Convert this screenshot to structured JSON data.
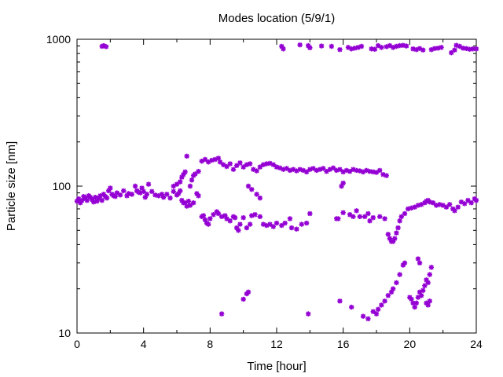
{
  "chart_data": {
    "type": "scatter",
    "title": "Modes location (5/9/1)",
    "xlabel": "Time [hour]",
    "ylabel": "Particle size [nm]",
    "xlim": [
      0,
      24
    ],
    "ylim": [
      10,
      1000
    ],
    "yscale": "log",
    "grid": false,
    "legend": "none",
    "x_ticks": [
      0,
      4,
      8,
      12,
      16,
      20,
      24
    ],
    "x_tick_labels": [
      "0",
      "4",
      "8",
      "12",
      "16",
      "20",
      "24"
    ],
    "y_ticks": [
      10,
      100,
      1000
    ],
    "y_tick_labels": [
      "10",
      "100",
      "1000"
    ],
    "marker": "asterisk",
    "color": "#9400d3",
    "series": [
      {
        "values": [
          [
            1.5,
            895
          ],
          [
            1.6,
            905
          ],
          [
            1.75,
            890
          ],
          [
            12.3,
            895
          ],
          [
            12.4,
            860
          ],
          [
            13.4,
            915
          ],
          [
            13.9,
            905
          ],
          [
            14.0,
            875
          ],
          [
            14.7,
            900
          ],
          [
            15.3,
            895
          ],
          [
            15.8,
            850
          ],
          [
            16.3,
            880
          ],
          [
            16.5,
            860
          ],
          [
            16.7,
            870
          ],
          [
            16.9,
            880
          ],
          [
            17.1,
            895
          ],
          [
            17.7,
            860
          ],
          [
            17.9,
            855
          ],
          [
            18.1,
            905
          ],
          [
            18.3,
            880
          ],
          [
            18.6,
            890
          ],
          [
            18.8,
            905
          ],
          [
            19.0,
            880
          ],
          [
            19.2,
            895
          ],
          [
            19.4,
            905
          ],
          [
            19.6,
            910
          ],
          [
            19.8,
            900
          ],
          [
            20.2,
            860
          ],
          [
            20.4,
            850
          ],
          [
            20.6,
            865
          ],
          [
            20.8,
            845
          ],
          [
            21.3,
            850
          ],
          [
            21.5,
            865
          ],
          [
            21.7,
            870
          ],
          [
            21.9,
            880
          ],
          [
            22.5,
            810
          ],
          [
            22.7,
            845
          ],
          [
            22.8,
            910
          ],
          [
            23.0,
            895
          ],
          [
            23.2,
            870
          ],
          [
            23.4,
            865
          ],
          [
            23.6,
            855
          ],
          [
            23.8,
            860
          ],
          [
            24.0,
            860
          ]
        ]
      },
      {
        "values": [
          [
            0.0,
            79
          ],
          [
            0.1,
            82
          ],
          [
            0.2,
            77
          ],
          [
            0.3,
            80
          ],
          [
            0.4,
            85
          ],
          [
            0.5,
            83
          ],
          [
            0.6,
            80
          ],
          [
            0.7,
            86
          ],
          [
            0.8,
            84
          ],
          [
            0.9,
            81
          ],
          [
            1.0,
            78
          ],
          [
            1.1,
            84
          ],
          [
            1.2,
            79
          ],
          [
            1.3,
            83
          ],
          [
            1.4,
            86
          ],
          [
            1.5,
            80
          ],
          [
            1.6,
            88
          ],
          [
            1.7,
            85
          ],
          [
            1.8,
            83
          ],
          [
            1.9,
            93
          ],
          [
            2.0,
            97
          ],
          [
            2.1,
            88
          ],
          [
            2.2,
            86
          ],
          [
            2.3,
            85
          ],
          [
            2.4,
            90
          ],
          [
            2.6,
            87
          ],
          [
            2.8,
            93
          ],
          [
            3.0,
            86
          ],
          [
            3.1,
            89
          ],
          [
            3.3,
            88
          ],
          [
            3.5,
            100
          ],
          [
            3.6,
            93
          ],
          [
            3.7,
            91
          ],
          [
            3.8,
            90
          ],
          [
            3.9,
            97
          ],
          [
            4.0,
            92
          ],
          [
            4.1,
            84
          ],
          [
            4.2,
            88
          ],
          [
            4.3,
            103
          ],
          [
            4.5,
            92
          ],
          [
            4.7,
            87
          ],
          [
            4.9,
            86
          ],
          [
            5.1,
            88
          ],
          [
            5.2,
            84
          ],
          [
            5.4,
            88
          ],
          [
            5.6,
            83
          ],
          [
            5.8,
            92
          ],
          [
            6.0,
            87
          ],
          [
            6.1,
            89
          ],
          [
            6.2,
            93
          ],
          [
            6.3,
            80
          ],
          [
            6.4,
            77
          ],
          [
            6.5,
            77
          ],
          [
            6.6,
            73
          ],
          [
            6.7,
            79
          ],
          [
            6.8,
            74
          ],
          [
            7.0,
            77
          ],
          [
            7.2,
            89
          ],
          [
            7.3,
            86
          ],
          [
            7.5,
            62
          ],
          [
            7.6,
            63
          ],
          [
            7.7,
            59
          ],
          [
            7.8,
            56
          ],
          [
            7.9,
            55
          ],
          [
            8.0,
            60
          ],
          [
            8.2,
            64
          ],
          [
            8.4,
            67
          ],
          [
            8.5,
            65
          ],
          [
            8.7,
            62
          ],
          [
            8.9,
            63
          ],
          [
            9.0,
            60
          ],
          [
            9.2,
            58
          ],
          [
            9.4,
            62
          ],
          [
            9.5,
            61
          ],
          [
            9.6,
            52
          ],
          [
            9.7,
            50
          ],
          [
            9.8,
            55
          ],
          [
            10.0,
            61
          ],
          [
            10.2,
            52
          ],
          [
            10.4,
            55
          ],
          [
            10.5,
            63
          ],
          [
            10.7,
            64
          ],
          [
            11.0,
            62
          ],
          [
            11.2,
            55
          ],
          [
            11.4,
            54
          ],
          [
            11.6,
            55
          ],
          [
            11.8,
            53
          ],
          [
            12.0,
            56
          ],
          [
            12.3,
            54
          ],
          [
            12.5,
            56
          ],
          [
            12.8,
            60
          ],
          [
            12.9,
            52
          ],
          [
            13.2,
            51
          ],
          [
            13.5,
            55
          ],
          [
            13.8,
            56
          ],
          [
            14.0,
            65
          ],
          [
            15.6,
            60
          ],
          [
            15.7,
            60
          ],
          [
            16.0,
            66
          ],
          [
            16.4,
            64
          ],
          [
            16.6,
            62
          ],
          [
            16.8,
            68
          ],
          [
            17.0,
            62
          ],
          [
            17.3,
            62
          ],
          [
            17.5,
            65
          ],
          [
            17.6,
            58
          ],
          [
            17.8,
            61
          ],
          [
            18.2,
            62
          ],
          [
            18.5,
            60
          ],
          [
            18.7,
            47
          ],
          [
            18.8,
            44
          ],
          [
            18.9,
            42
          ],
          [
            19.0,
            42
          ],
          [
            19.1,
            44
          ],
          [
            19.2,
            48
          ],
          [
            19.3,
            52
          ],
          [
            19.4,
            58
          ],
          [
            19.5,
            62
          ],
          [
            19.7,
            65
          ],
          [
            19.9,
            70
          ],
          [
            20.1,
            71
          ],
          [
            20.3,
            72
          ],
          [
            20.5,
            74
          ],
          [
            20.7,
            75
          ],
          [
            20.9,
            77
          ],
          [
            21.0,
            79
          ],
          [
            21.1,
            80
          ],
          [
            21.2,
            78
          ],
          [
            21.4,
            77
          ],
          [
            21.6,
            74
          ],
          [
            21.8,
            75
          ],
          [
            22.0,
            74
          ],
          [
            22.2,
            72
          ],
          [
            22.4,
            75
          ],
          [
            22.6,
            70
          ],
          [
            22.7,
            68
          ],
          [
            22.9,
            72
          ],
          [
            23.1,
            78
          ],
          [
            23.3,
            76
          ],
          [
            23.5,
            80
          ],
          [
            23.7,
            77
          ],
          [
            23.9,
            82
          ],
          [
            24.0,
            80
          ]
        ]
      },
      {
        "values": [
          [
            5.8,
            100
          ],
          [
            6.0,
            103
          ],
          [
            6.2,
            107
          ],
          [
            6.3,
            115
          ],
          [
            6.4,
            120
          ],
          [
            6.5,
            125
          ],
          [
            6.6,
            160
          ],
          [
            6.8,
            100
          ],
          [
            6.9,
            110
          ],
          [
            7.0,
            118
          ],
          [
            7.1,
            121
          ],
          [
            7.3,
            126
          ],
          [
            7.5,
            148
          ],
          [
            7.7,
            152
          ],
          [
            7.9,
            146
          ],
          [
            8.1,
            150
          ],
          [
            8.3,
            152
          ],
          [
            8.5,
            155
          ],
          [
            8.6,
            146
          ],
          [
            8.8,
            140
          ],
          [
            9.0,
            136
          ],
          [
            9.2,
            142
          ],
          [
            9.4,
            130
          ],
          [
            9.6,
            138
          ],
          [
            9.8,
            144
          ],
          [
            10.0,
            135
          ],
          [
            10.2,
            140
          ],
          [
            10.4,
            142
          ],
          [
            10.6,
            130
          ],
          [
            10.8,
            127
          ],
          [
            11.0,
            135
          ],
          [
            11.2,
            140
          ],
          [
            11.4,
            142
          ],
          [
            11.6,
            143
          ],
          [
            11.8,
            140
          ],
          [
            12.0,
            135
          ],
          [
            12.2,
            133
          ],
          [
            12.4,
            130
          ],
          [
            12.6,
            132
          ],
          [
            12.8,
            128
          ],
          [
            13.0,
            130
          ],
          [
            13.2,
            127
          ],
          [
            13.4,
            130
          ],
          [
            13.6,
            128
          ],
          [
            13.8,
            125
          ],
          [
            14.0,
            130
          ],
          [
            14.2,
            132
          ],
          [
            14.4,
            128
          ],
          [
            14.6,
            130
          ],
          [
            14.8,
            132
          ],
          [
            15.0,
            126
          ],
          [
            15.2,
            130
          ],
          [
            15.4,
            133
          ],
          [
            15.6,
            128
          ],
          [
            15.8,
            130
          ],
          [
            16.0,
            125
          ],
          [
            16.2,
            128
          ],
          [
            16.4,
            126
          ],
          [
            16.6,
            130
          ],
          [
            16.8,
            128
          ],
          [
            17.0,
            127
          ],
          [
            17.2,
            125
          ],
          [
            17.4,
            128
          ],
          [
            17.6,
            126
          ],
          [
            17.8,
            125
          ],
          [
            18.0,
            124
          ],
          [
            18.2,
            128
          ],
          [
            18.4,
            120
          ],
          [
            18.6,
            118
          ],
          [
            15.9,
            100
          ],
          [
            16.0,
            105
          ],
          [
            10.3,
            100
          ],
          [
            10.5,
            95
          ],
          [
            10.8,
            88
          ],
          [
            11.0,
            83
          ]
        ]
      },
      {
        "values": [
          [
            8.7,
            13.5
          ],
          [
            10.0,
            17
          ],
          [
            10.2,
            18.5
          ],
          [
            10.3,
            19
          ],
          [
            13.9,
            13.5
          ],
          [
            15.8,
            16.5
          ],
          [
            16.5,
            15
          ],
          [
            17.2,
            13
          ],
          [
            17.5,
            12.5
          ],
          [
            17.8,
            14
          ],
          [
            18.0,
            13.5
          ],
          [
            18.1,
            14.5
          ],
          [
            18.3,
            15.5
          ],
          [
            18.5,
            16.5
          ],
          [
            18.7,
            18
          ],
          [
            18.9,
            19
          ],
          [
            19.0,
            20
          ],
          [
            19.2,
            22
          ],
          [
            19.4,
            25
          ],
          [
            19.6,
            29
          ],
          [
            19.7,
            30
          ],
          [
            20.0,
            17.5
          ],
          [
            20.1,
            17
          ],
          [
            20.2,
            16
          ],
          [
            20.3,
            15
          ],
          [
            20.4,
            16
          ],
          [
            20.5,
            17.5
          ],
          [
            20.6,
            19
          ],
          [
            20.7,
            18
          ],
          [
            20.8,
            19.5
          ],
          [
            20.9,
            21
          ],
          [
            21.0,
            23
          ],
          [
            21.1,
            22
          ],
          [
            21.2,
            25
          ],
          [
            21.3,
            28
          ],
          [
            20.5,
            32
          ],
          [
            20.6,
            30
          ],
          [
            21.0,
            16
          ],
          [
            21.1,
            15.5
          ],
          [
            21.2,
            16.5
          ]
        ]
      }
    ]
  }
}
